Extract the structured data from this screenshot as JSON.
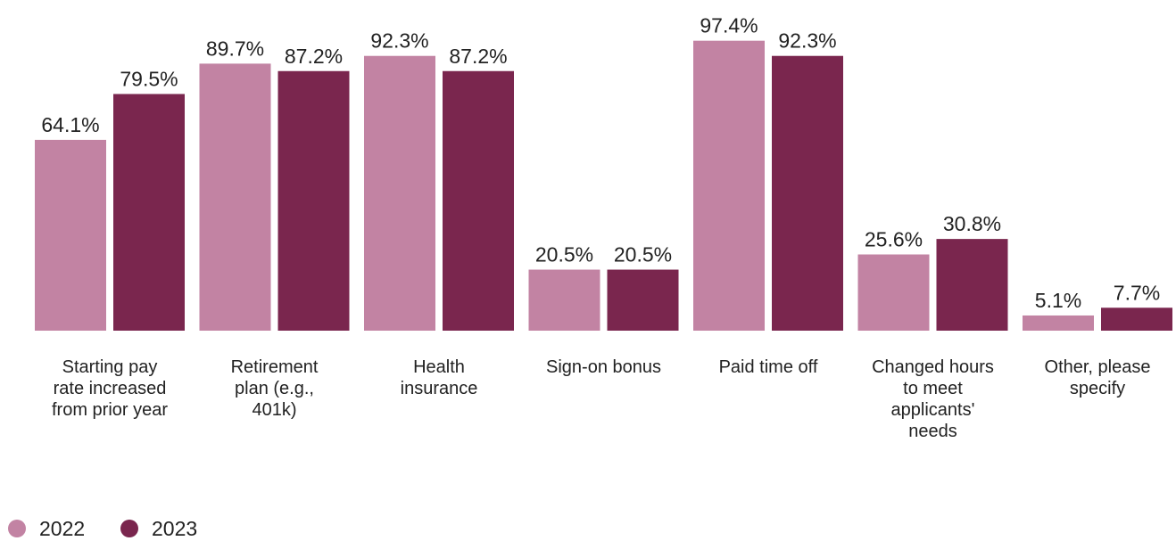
{
  "chart_data": {
    "type": "bar",
    "categories": [
      "Starting pay rate increased from prior year",
      "Retirement plan (e.g., 401k)",
      "Health insurance",
      "Sign-on bonus",
      "Paid time off",
      "Changed hours to meet applicants' needs",
      "Other, please specify"
    ],
    "category_lines": [
      [
        "Starting pay",
        "rate increased",
        "from prior year"
      ],
      [
        "Retirement",
        "plan (e.g.,",
        "401k)"
      ],
      [
        "Health",
        "insurance"
      ],
      [
        "Sign-on bonus"
      ],
      [
        "Paid time off"
      ],
      [
        "Changed hours",
        "to meet",
        "applicants'",
        "needs"
      ],
      [
        "Other, please",
        "specify"
      ]
    ],
    "series": [
      {
        "name": "2022",
        "color": "#c283a3",
        "values": [
          64.1,
          89.7,
          92.3,
          20.5,
          97.4,
          25.6,
          5.1
        ]
      },
      {
        "name": "2023",
        "color": "#7a264e",
        "values": [
          79.5,
          87.2,
          87.2,
          20.5,
          92.3,
          30.8,
          7.7
        ]
      }
    ],
    "value_labels": [
      [
        "64.1%",
        "89.7%",
        "92.3%",
        "20.5%",
        "97.4%",
        "25.6%",
        "5.1%"
      ],
      [
        "79.5%",
        "87.2%",
        "87.2%",
        "20.5%",
        "92.3%",
        "30.8%",
        "7.7%"
      ]
    ],
    "ylim": [
      0,
      100
    ],
    "grid": false,
    "legend_position": "bottom-left"
  }
}
